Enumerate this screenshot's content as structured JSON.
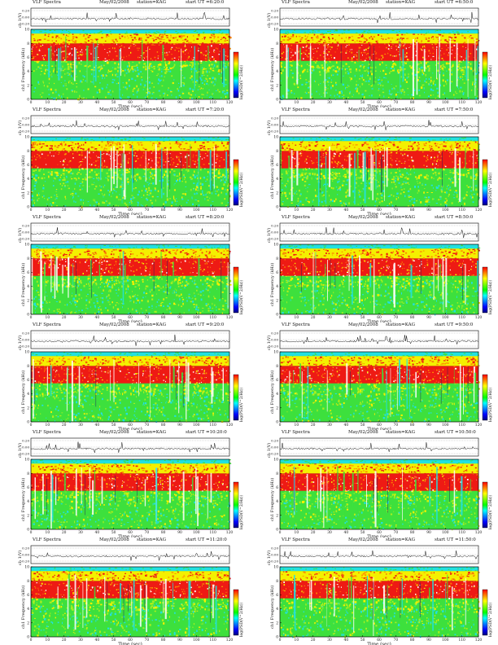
{
  "chart_data": [
    {
      "type": "heatmap",
      "title": "VLF Spectra",
      "date": "May/02/2008",
      "station": "station=KAG",
      "start_ut": "start UT =6:20:0",
      "xlabel": "Time (sec)",
      "ylabel_top": "ch 1(V)",
      "ylabel_main": "ch1 Frequency (kHz)",
      "colorbar_label": "log(PSD(V^2/Hz))",
      "x_ticks": [
        0,
        10,
        20,
        30,
        40,
        50,
        60,
        70,
        80,
        90,
        100,
        110,
        120
      ],
      "y_ticks": [
        0,
        2,
        4,
        6,
        8,
        10
      ],
      "amp_ticks": [
        "0.20",
        "0.00",
        "-0.20"
      ],
      "xlim": [
        0,
        120
      ],
      "ylim": [
        0,
        10
      ],
      "freq_bands": [
        {
          "name": "upper",
          "range_khz": [
            8,
            10
          ]
        },
        {
          "name": "main",
          "range_khz": [
            5,
            8
          ]
        },
        {
          "name": "low",
          "range_khz": [
            0,
            5
          ]
        }
      ]
    },
    {
      "type": "heatmap",
      "title": "VLF Spectra",
      "date": "May/02/2008",
      "station": "station=KAG",
      "start_ut": "start UT =6:50:0",
      "xlabel": "Time (sec)",
      "ylabel_top": "ch 1(V)",
      "ylabel_main": "ch1 Frequency (kHz)",
      "colorbar_label": "log(PSD(V^2/Hz))",
      "x_ticks": [
        0,
        10,
        20,
        30,
        40,
        50,
        60,
        70,
        80,
        90,
        100,
        110,
        120
      ],
      "y_ticks": [
        0,
        2,
        4,
        6,
        8,
        10
      ],
      "amp_ticks": [
        "0.20",
        "0.00",
        "-0.20"
      ],
      "xlim": [
        0,
        120
      ],
      "ylim": [
        0,
        10
      ]
    },
    {
      "type": "heatmap",
      "title": "VLF Spectra",
      "date": "May/02/2008",
      "station": "station=KAG",
      "start_ut": "start UT =7:20:0",
      "xlabel": "Time (sec)",
      "ylabel_top": "ch 1(V)",
      "ylabel_main": "ch1 Frequency (kHz)",
      "colorbar_label": "log(PSD(V^2/Hz))",
      "x_ticks": [
        0,
        10,
        20,
        30,
        40,
        50,
        60,
        70,
        80,
        90,
        100,
        110,
        120
      ],
      "y_ticks": [
        0,
        2,
        4,
        6,
        8,
        10
      ],
      "amp_ticks": [
        "0.20",
        "0.00",
        "-0.20"
      ],
      "xlim": [
        0,
        120
      ],
      "ylim": [
        0,
        10
      ]
    },
    {
      "type": "heatmap",
      "title": "VLF Spectra",
      "date": "May/02/2008",
      "station": "station=KAG",
      "start_ut": "start UT =7:50:0",
      "xlabel": "Time (sec)",
      "ylabel_top": "ch 1(V)",
      "ylabel_main": "ch1 Frequency (kHz)",
      "colorbar_label": "log(PSD(V^2/Hz))",
      "x_ticks": [
        0,
        10,
        20,
        30,
        40,
        50,
        60,
        70,
        80,
        90,
        100,
        110,
        120
      ],
      "y_ticks": [
        0,
        2,
        4,
        6,
        8,
        10
      ],
      "amp_ticks": [
        "0.20",
        "0.00",
        "-0.20"
      ],
      "xlim": [
        0,
        120
      ],
      "ylim": [
        0,
        10
      ]
    },
    {
      "type": "heatmap",
      "title": "VLF Spectra",
      "date": "May/02/2008",
      "station": "station=KAG",
      "start_ut": "start UT =8:20:0",
      "xlabel": "Time (sec)",
      "ylabel_top": "ch 1(V)",
      "ylabel_main": "ch1 Frequency (kHz)",
      "colorbar_label": "log(PSD(V^2/Hz))",
      "x_ticks": [
        0,
        10,
        20,
        30,
        40,
        50,
        60,
        70,
        80,
        90,
        100,
        110,
        120
      ],
      "y_ticks": [
        0,
        2,
        4,
        6,
        8,
        10
      ],
      "amp_ticks": [
        "0.20",
        "0.00",
        "-0.20"
      ],
      "xlim": [
        0,
        120
      ],
      "ylim": [
        0,
        10
      ]
    },
    {
      "type": "heatmap",
      "title": "VLF Spectra",
      "date": "May/02/2008",
      "station": "station=KAG",
      "start_ut": "start UT =8:50:0",
      "xlabel": "Time (sec)",
      "ylabel_top": "ch 1(V)",
      "ylabel_main": "ch1 Frequency (kHz)",
      "colorbar_label": "log(PSD(V^2/Hz))",
      "x_ticks": [
        0,
        10,
        20,
        30,
        40,
        50,
        60,
        70,
        80,
        90,
        100,
        110,
        120
      ],
      "y_ticks": [
        0,
        2,
        4,
        6,
        8,
        10
      ],
      "amp_ticks": [
        "0.20",
        "0.00",
        "-0.20"
      ],
      "xlim": [
        0,
        120
      ],
      "ylim": [
        0,
        10
      ]
    },
    {
      "type": "heatmap",
      "title": "VLF Spectra",
      "date": "May/02/2008",
      "station": "station=KAG",
      "start_ut": "start UT =9:20:0",
      "xlabel": "Time (sec)",
      "ylabel_top": "ch 1(V)",
      "ylabel_main": "ch1 Frequency (kHz)",
      "colorbar_label": "log(PSD(V^2/Hz))",
      "x_ticks": [
        0,
        10,
        20,
        30,
        40,
        50,
        60,
        70,
        80,
        90,
        100,
        110,
        120
      ],
      "y_ticks": [
        0,
        2,
        4,
        6,
        8,
        10
      ],
      "amp_ticks": [
        "0.20",
        "0.00",
        "-0.20"
      ],
      "xlim": [
        0,
        120
      ],
      "ylim": [
        0,
        10
      ]
    },
    {
      "type": "heatmap",
      "title": "VLF Spectra",
      "date": "May/02/2008",
      "station": "station=KAG",
      "start_ut": "start UT =9:50:0",
      "xlabel": "Time (sec)",
      "ylabel_top": "ch 1(V)",
      "ylabel_main": "ch1 Frequency (kHz)",
      "colorbar_label": "log(PSD(V^2/Hz))",
      "x_ticks": [
        0,
        10,
        20,
        30,
        40,
        50,
        60,
        70,
        80,
        90,
        100,
        110,
        120
      ],
      "y_ticks": [
        0,
        2,
        4,
        6,
        8,
        10
      ],
      "amp_ticks": [
        "0.20",
        "0.00",
        "-0.20"
      ],
      "xlim": [
        0,
        120
      ],
      "ylim": [
        0,
        10
      ]
    },
    {
      "type": "heatmap",
      "title": "VLF Spectra",
      "date": "May/02/2008",
      "station": "station=KAG",
      "start_ut": "start UT =10:20:0",
      "xlabel": "Time (sec)",
      "ylabel_top": "ch 1(V)",
      "ylabel_main": "ch1 Frequency (kHz)",
      "colorbar_label": "log(PSD(V^2/Hz))",
      "x_ticks": [
        0,
        10,
        20,
        30,
        40,
        50,
        60,
        70,
        80,
        90,
        100,
        110,
        120
      ],
      "y_ticks": [
        0,
        2,
        4,
        6,
        8,
        10
      ],
      "amp_ticks": [
        "0.20",
        "0.00",
        "-0.20"
      ],
      "xlim": [
        0,
        120
      ],
      "ylim": [
        0,
        10
      ]
    },
    {
      "type": "heatmap",
      "title": "VLF Spectra",
      "date": "May/02/2008",
      "station": "station=KAG",
      "start_ut": "start UT =10:50:0",
      "xlabel": "Time (sec)",
      "ylabel_top": "ch 1(V)",
      "ylabel_main": "ch1 Frequency (kHz)",
      "colorbar_label": "log(PSD(V^2/Hz))",
      "x_ticks": [
        0,
        10,
        20,
        30,
        40,
        50,
        60,
        70,
        80,
        90,
        100,
        110,
        120
      ],
      "y_ticks": [
        0,
        2,
        4,
        6,
        8,
        10
      ],
      "amp_ticks": [
        "0.20",
        "0.00",
        "-0.20"
      ],
      "xlim": [
        0,
        120
      ],
      "ylim": [
        0,
        10
      ]
    },
    {
      "type": "heatmap",
      "title": "VLF Spectra",
      "date": "May/02/2008",
      "station": "station=KAG",
      "start_ut": "start UT =11:20:0",
      "xlabel": "Time (sec)",
      "ylabel_top": "ch 1(V)",
      "ylabel_main": "ch1 Frequency (kHz)",
      "colorbar_label": "log(PSD(V^2/Hz))",
      "x_ticks": [
        0,
        10,
        20,
        30,
        40,
        50,
        60,
        70,
        80,
        90,
        100,
        110,
        120
      ],
      "y_ticks": [
        0,
        2,
        4,
        6,
        8,
        10
      ],
      "amp_ticks": [
        "0.20",
        "0.00",
        "-0.20"
      ],
      "xlim": [
        0,
        120
      ],
      "ylim": [
        0,
        10
      ]
    },
    {
      "type": "heatmap",
      "title": "VLF Spectra",
      "date": "May/02/2008",
      "station": "station=KAG",
      "start_ut": "start UT =11:50:0",
      "xlabel": "Time (sec)",
      "ylabel_top": "ch 1(V)",
      "ylabel_main": "ch1 Frequency (kHz)",
      "colorbar_label": "log(PSD(V^2/Hz))",
      "x_ticks": [
        0,
        10,
        20,
        30,
        40,
        50,
        60,
        70,
        80,
        90,
        100,
        110,
        120
      ],
      "y_ticks": [
        0,
        2,
        4,
        6,
        8,
        10
      ],
      "amp_ticks": [
        "0.20",
        "0.00",
        "-0.20"
      ],
      "xlim": [
        0,
        120
      ],
      "ylim": [
        0,
        10
      ]
    }
  ],
  "colors": {
    "cyan": "#22e0e0",
    "green": "#3de03d",
    "lime": "#a8f020",
    "yellow": "#f4f000",
    "orange": "#ff8a00",
    "red": "#ee1a14",
    "white": "#ffffff",
    "colorbar": [
      "#ff0000",
      "#ff8000",
      "#ffff00",
      "#80ff00",
      "#00ff00",
      "#00ffff",
      "#0080ff",
      "#0000ff",
      "#000080"
    ]
  }
}
